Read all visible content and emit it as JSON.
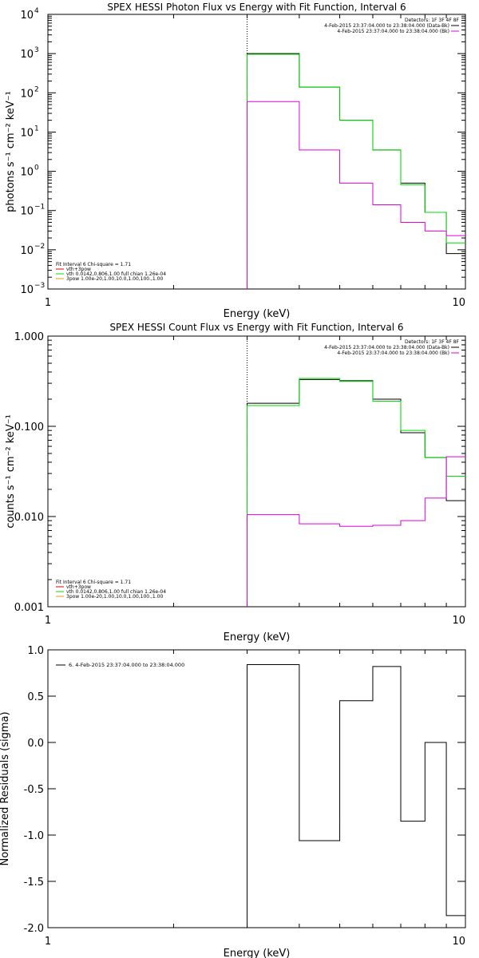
{
  "chart_data": [
    {
      "type": "line",
      "title": "SPEX HESSI Photon Flux vs Energy with Fit Function, Interval 6",
      "xlabel": "Energy (keV)",
      "ylabel": "photons s⁻¹ cm⁻² keV⁻¹",
      "xscale": "log",
      "yscale": "log",
      "xlim": [
        1,
        10
      ],
      "ylim": [
        0.001,
        10000
      ],
      "x_ticks": [
        {
          "value": 1,
          "label": "1"
        },
        {
          "value": 10,
          "label": "10"
        }
      ],
      "y_ticks": [
        {
          "value": 0.001,
          "base": "10",
          "exp": "−3"
        },
        {
          "value": 0.01,
          "base": "10",
          "exp": "−2"
        },
        {
          "value": 0.1,
          "base": "10",
          "exp": "−1"
        },
        {
          "value": 1,
          "base": "10",
          "exp": "0"
        },
        {
          "value": 10,
          "base": "10",
          "exp": "1"
        },
        {
          "value": 100,
          "base": "10",
          "exp": "2"
        },
        {
          "value": 1000,
          "base": "10",
          "exp": "3"
        },
        {
          "value": 10000,
          "base": "10",
          "exp": "4"
        }
      ],
      "fit_marker_x": 3,
      "bin_edges": [
        3,
        4,
        5,
        6,
        7,
        8,
        9,
        10
      ],
      "series": [
        {
          "key": "data",
          "color": "#000000",
          "values": [
            1000,
            140,
            20,
            3.5,
            0.5,
            0.09,
            0.008
          ]
        },
        {
          "key": "fit",
          "color": "#00dd00",
          "values": [
            960,
            140,
            20,
            3.5,
            0.45,
            0.09,
            0.015
          ]
        },
        {
          "key": "component",
          "color": "#e000e0",
          "values": [
            60,
            3.5,
            0.5,
            0.14,
            0.05,
            0.03,
            0.023
          ]
        }
      ],
      "legend_top": {
        "position": "top-right",
        "header": "Detectors: 1F 3F 4F 8F",
        "entries": [
          {
            "text": "4-Feb-2015 23:37:04.000 to 23:38:04.000 (Data-Bk)",
            "color": "#000000"
          },
          {
            "text": "4-Feb-2015 23:37:04.000 to 23:38:04.000 (Bk)",
            "color": "#e000e0"
          }
        ]
      },
      "legend_bottom": {
        "position": "bottom-left",
        "header": "Fit Interval 6   Chi-square = 1.71",
        "entries": [
          {
            "text": "vth+3pow",
            "color": "#e00000"
          },
          {
            "text": "vth 0.0142,0.806,1.00  full chian 1.26e-04",
            "color": "#00dd00"
          },
          {
            "text": "3pow 1.00e-20,1.00,10.0,1.00,100.,1.00",
            "color": "#e0a000"
          }
        ]
      }
    },
    {
      "type": "line",
      "title": "SPEX HESSI Count Flux vs Energy with Fit Function, Interval 6",
      "xlabel": "Energy (keV)",
      "ylabel": "counts s⁻¹ cm⁻² keV⁻¹",
      "xscale": "log",
      "yscale": "log",
      "xlim": [
        1,
        10
      ],
      "ylim": [
        0.001,
        1
      ],
      "x_ticks": [
        {
          "value": 1,
          "label": "1"
        },
        {
          "value": 10,
          "label": "10"
        }
      ],
      "y_ticks": [
        {
          "value": 0.001,
          "label": "0.001"
        },
        {
          "value": 0.01,
          "label": "0.010"
        },
        {
          "value": 0.1,
          "label": "0.100"
        },
        {
          "value": 1,
          "label": "1.000"
        }
      ],
      "fit_marker_x": 3,
      "bin_edges": [
        3,
        4,
        5,
        6,
        7,
        8,
        9,
        10
      ],
      "series": [
        {
          "key": "data",
          "color": "#000000",
          "values": [
            0.18,
            0.33,
            0.32,
            0.2,
            0.085,
            0.045,
            0.015
          ]
        },
        {
          "key": "fit",
          "color": "#00dd00",
          "values": [
            0.17,
            0.34,
            0.315,
            0.19,
            0.09,
            0.045,
            0.028
          ]
        },
        {
          "key": "component",
          "color": "#e000e0",
          "values": [
            0.0105,
            0.0083,
            0.0078,
            0.008,
            0.009,
            0.016,
            0.046
          ]
        }
      ],
      "legend_top": {
        "position": "top-right",
        "header": "Detectors: 1F 3F 4F 8F",
        "entries": [
          {
            "text": "4-Feb-2015 23:37:04.000 to 23:38:04.000 (Data-Bk)",
            "color": "#000000"
          },
          {
            "text": "4-Feb-2015 23:37:04.000 to 23:38:04.000 (Bk)",
            "color": "#e000e0"
          }
        ]
      },
      "legend_bottom": {
        "position": "bottom-left",
        "header": "Fit Interval 6   Chi-square = 1.71",
        "entries": [
          {
            "text": "vth+3pow",
            "color": "#e00000"
          },
          {
            "text": "vth 0.0142,0.806,1.00  full chian 1.26e-04",
            "color": "#00dd00"
          },
          {
            "text": "3pow 1.00e-20,1.00,10.0,1.00,100.,1.00",
            "color": "#e0a000"
          }
        ]
      }
    },
    {
      "type": "line",
      "title": "",
      "xlabel": "Energy (keV)",
      "ylabel": "Normalized Residuals (sigma)",
      "xscale": "log",
      "yscale": "linear",
      "xlim": [
        1,
        10
      ],
      "ylim": [
        -2.0,
        1.0
      ],
      "x_ticks": [
        {
          "value": 1,
          "label": "1"
        },
        {
          "value": 10,
          "label": "10"
        }
      ],
      "y_ticks": [
        {
          "value": 1.0,
          "label": "1.0"
        },
        {
          "value": 0.5,
          "label": "0.5"
        },
        {
          "value": 0.0,
          "label": "0.0"
        },
        {
          "value": -0.5,
          "label": "-0.5"
        },
        {
          "value": -1.0,
          "label": "-1.0"
        },
        {
          "value": -1.5,
          "label": "-1.5"
        },
        {
          "value": -2.0,
          "label": "-2.0"
        }
      ],
      "bin_edges": [
        3,
        4,
        5,
        6,
        7,
        8,
        9,
        10
      ],
      "series": [
        {
          "key": "residuals",
          "color": "#000000",
          "values": [
            0.84,
            -1.06,
            0.45,
            0.82,
            -0.85,
            0.0,
            -1.87
          ]
        }
      ],
      "legend_top": {
        "position": "top-left",
        "entries": [
          {
            "text": "6.  4-Feb-2015 23:37:04.000 to 23:38:04.000",
            "color": "#000000"
          }
        ]
      }
    }
  ]
}
